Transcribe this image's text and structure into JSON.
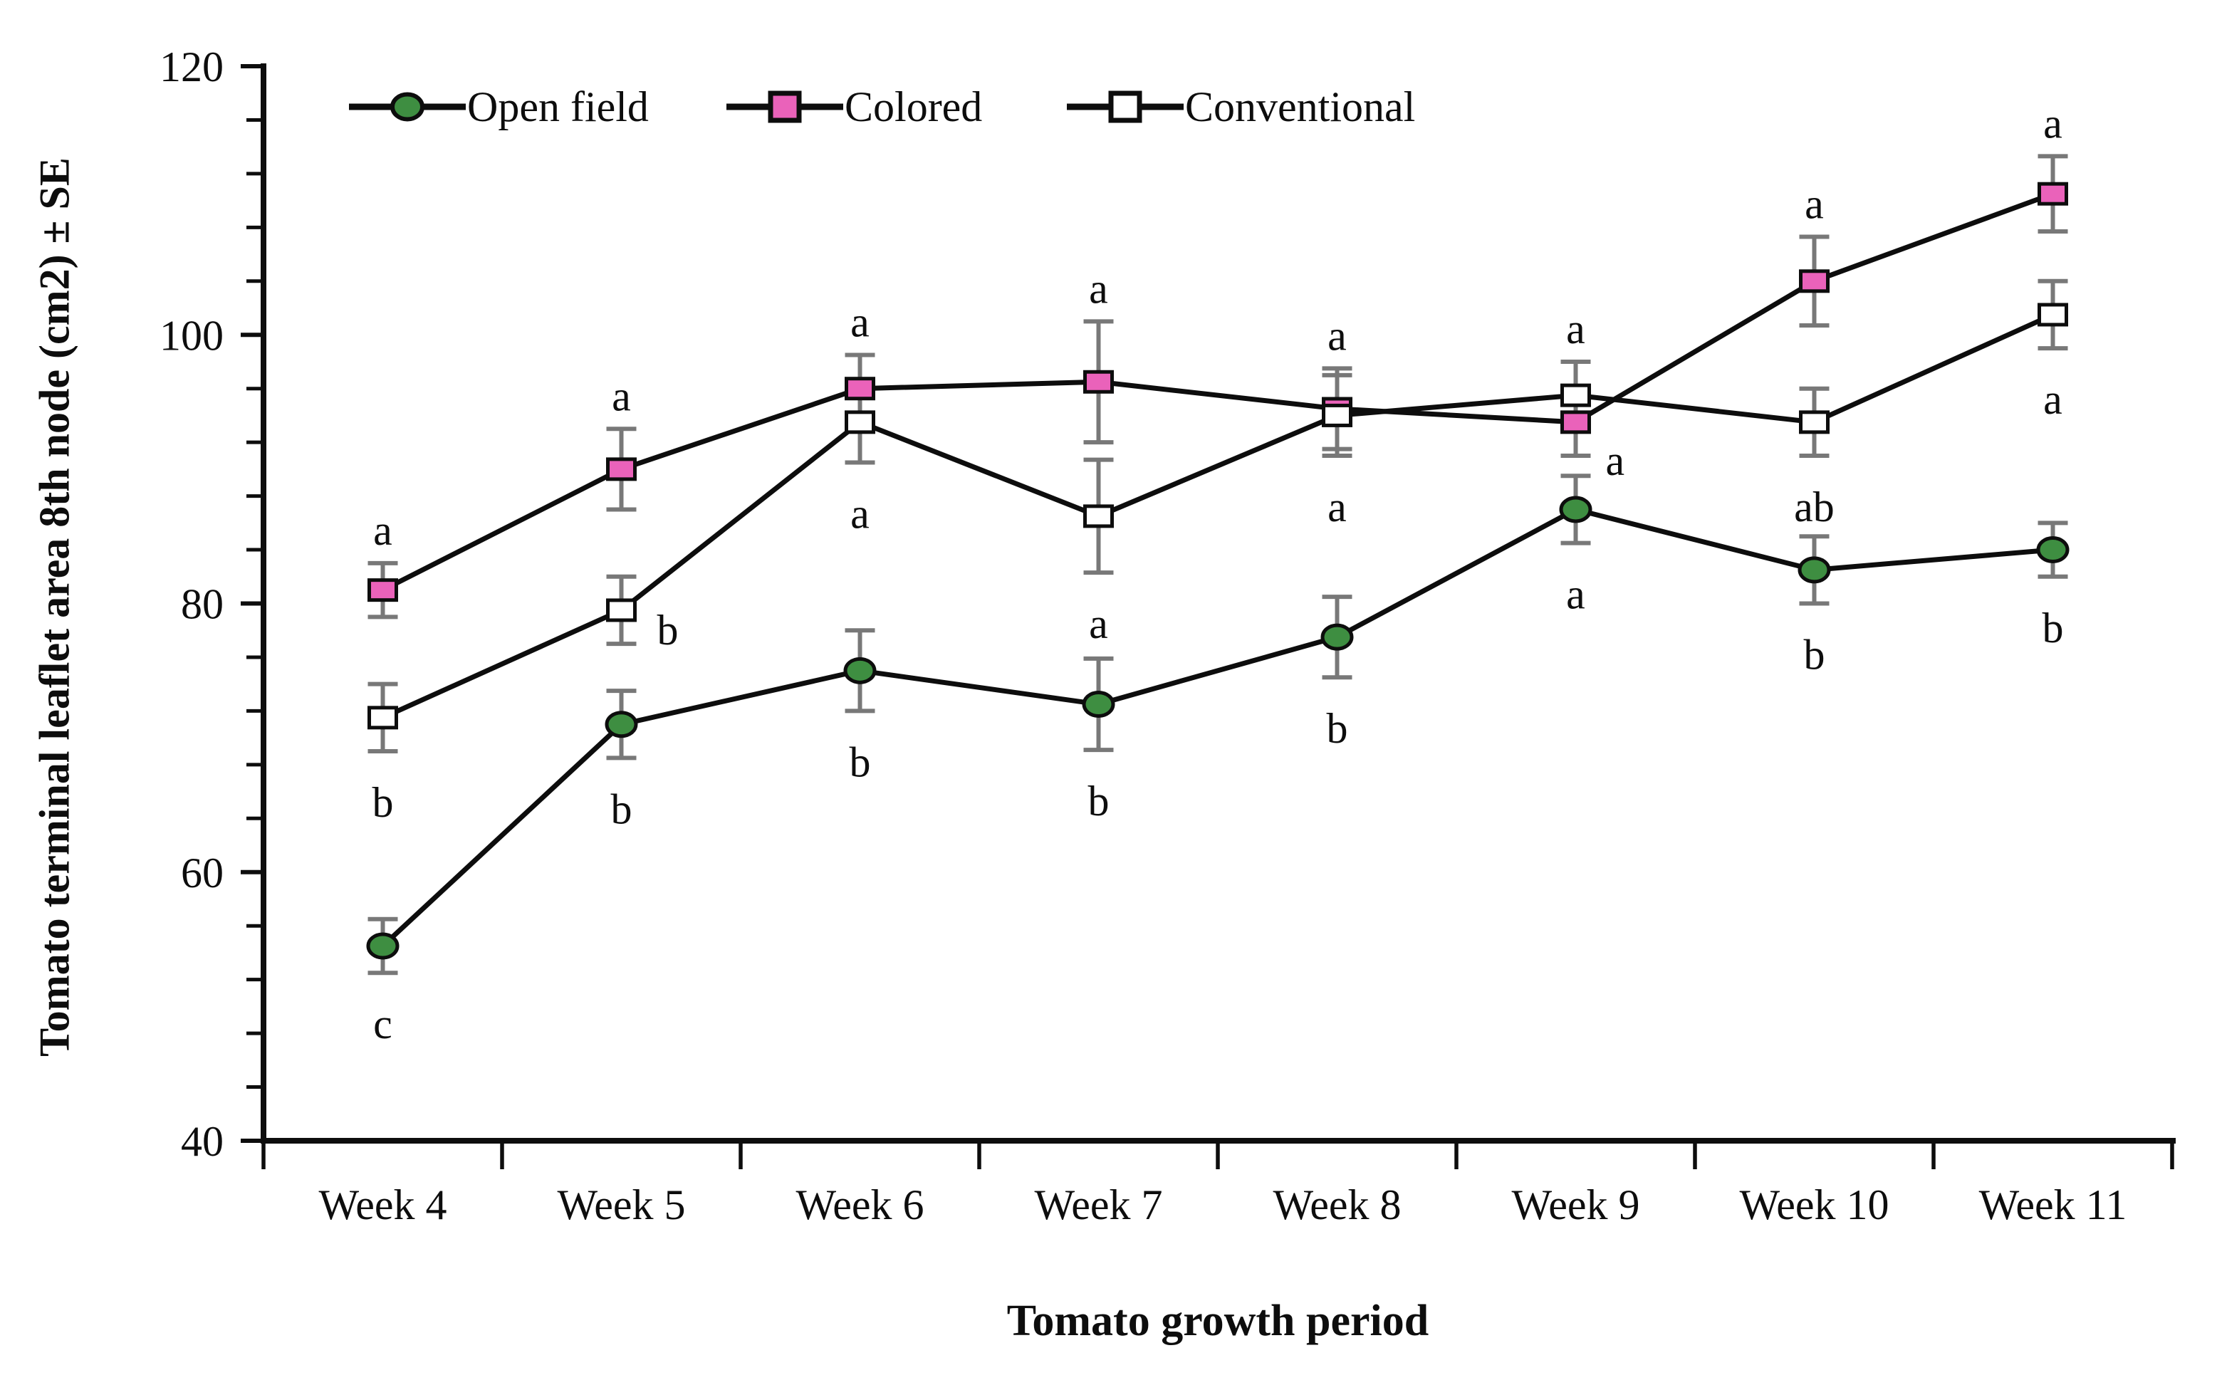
{
  "figure": {
    "y_axis_title": "Tomato terminal leaflet area 8th node (cm2) ± SE",
    "x_axis_title": "Tomato growth period"
  },
  "legend": {
    "items": [
      {
        "label": "Open field",
        "marker": "circle",
        "color": "#3e8e41"
      },
      {
        "label": "Colored",
        "marker": "square",
        "color": "#ea62ba"
      },
      {
        "label": "Conventional",
        "marker": "square",
        "color": "#ffffff"
      }
    ]
  },
  "chart_data": {
    "type": "line",
    "title": "",
    "xlabel": "Tomato growth period",
    "ylabel": "Tomato terminal leaflet area 8th node (cm2) ± SE",
    "categories": [
      "Week 4",
      "Week 5",
      "Week 6",
      "Week 7",
      "Week 8",
      "Week 9",
      "Week 10",
      "Week 11"
    ],
    "ylim": [
      40,
      120
    ],
    "yticks_major": [
      40,
      60,
      80,
      100,
      120
    ],
    "ytick_minor_step": 4,
    "grid": false,
    "legend_position": "top-inside",
    "line_color": "#0d0d0d",
    "error_bar_color": "#787878",
    "series": [
      {
        "name": "Open field",
        "marker": "circle",
        "fill": "#3e8e41",
        "values": [
          54.5,
          71,
          75,
          72.5,
          77.5,
          87,
          82.5,
          84
        ],
        "se": [
          2,
          2.5,
          3,
          3.4,
          3,
          2.5,
          2.5,
          2
        ],
        "letters": [
          "c",
          "b",
          "b",
          "b",
          "b",
          "a",
          "b",
          "b"
        ],
        "letter_pos": [
          "below",
          "below",
          "below",
          "below",
          "below",
          "below",
          "below",
          "below"
        ]
      },
      {
        "name": "Colored",
        "marker": "square",
        "fill": "#ea62ba",
        "values": [
          81,
          90,
          96,
          96.5,
          94.5,
          93.5,
          104,
          110.5
        ],
        "se": [
          2,
          3,
          2.5,
          4.5,
          3,
          2.5,
          3.3,
          2.8
        ],
        "letters": [
          "a",
          "a",
          "a",
          "a",
          "a",
          "a",
          "a",
          "a"
        ],
        "letter_pos": [
          "above",
          "above",
          "above",
          "above",
          "above",
          "below-right",
          "above",
          "above"
        ]
      },
      {
        "name": "Conventional",
        "marker": "square",
        "fill": "#ffffff",
        "values": [
          71.5,
          79.5,
          93.5,
          86.5,
          94,
          95.5,
          93.5,
          101.5
        ],
        "se": [
          2.5,
          2.5,
          3,
          4.2,
          3,
          2.5,
          2.5,
          2.5
        ],
        "letters": [
          "b",
          "b",
          "a",
          "a",
          "a",
          "a",
          "ab",
          "a"
        ],
        "letter_pos": [
          "below",
          "right",
          "below",
          "below",
          "below",
          "above",
          "below",
          "below"
        ]
      }
    ]
  }
}
